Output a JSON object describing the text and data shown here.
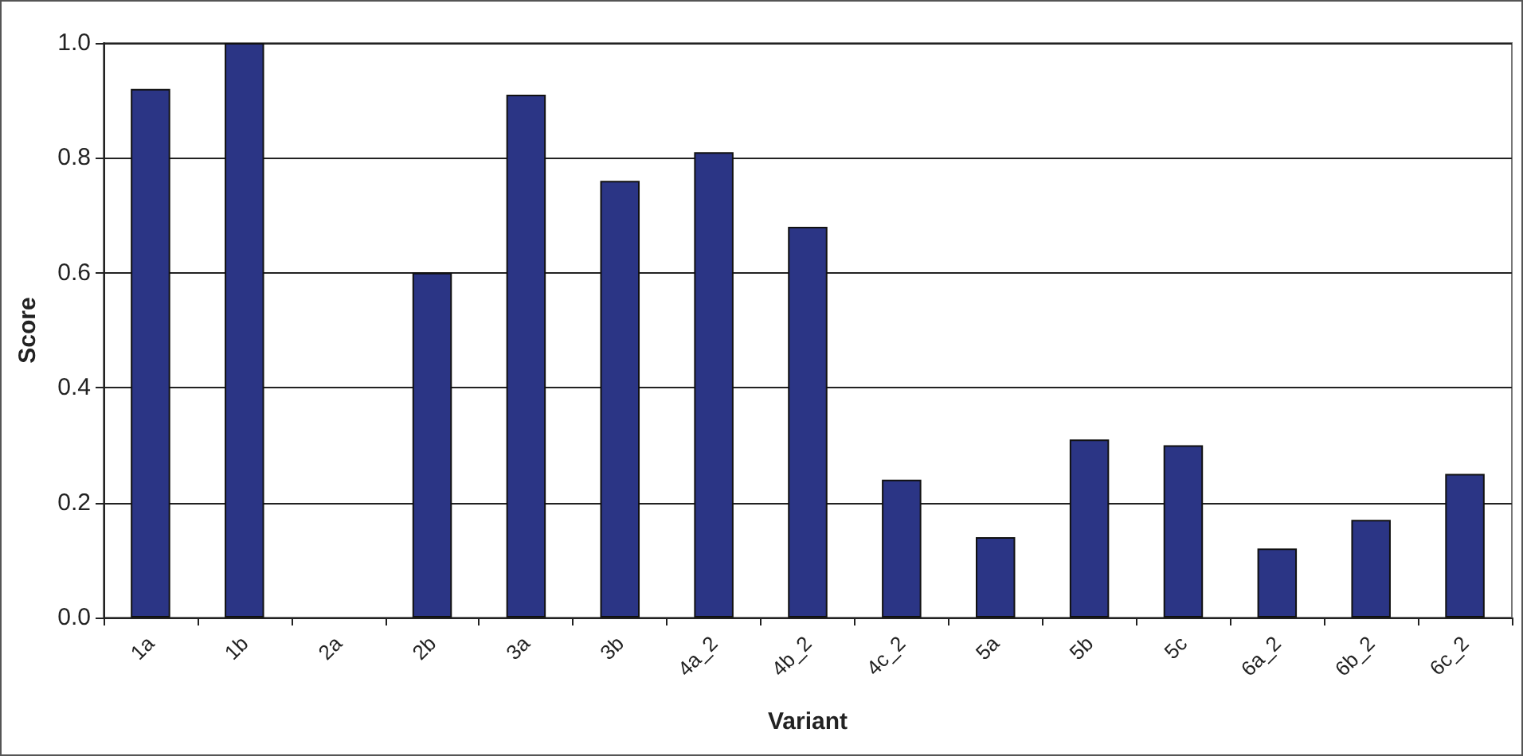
{
  "chart_data": {
    "type": "bar",
    "xlabel": "Variant",
    "ylabel": "Score",
    "categories": [
      "1a",
      "1b",
      "2a",
      "2b",
      "3a",
      "3b",
      "4a_2",
      "4b_2",
      "4c_2",
      "5a",
      "5b",
      "5c",
      "6a_2",
      "6b_2",
      "6c_2"
    ],
    "values": [
      0.92,
      1.0,
      null,
      0.6,
      0.91,
      0.76,
      0.81,
      0.68,
      0.24,
      0.14,
      0.31,
      0.3,
      0.12,
      0.17,
      0.25
    ],
    "color": "#2b3585",
    "ylim": [
      0,
      1
    ],
    "yticks": [
      {
        "value": 0,
        "label": "0.0"
      },
      {
        "value": 0.2,
        "label": "0.2"
      },
      {
        "value": 0.4,
        "label": "0.4"
      },
      {
        "value": 0.6,
        "label": "0.6"
      },
      {
        "value": 0.8,
        "label": "0.8"
      },
      {
        "value": 1,
        "label": "1.0"
      }
    ],
    "grid": "y"
  }
}
